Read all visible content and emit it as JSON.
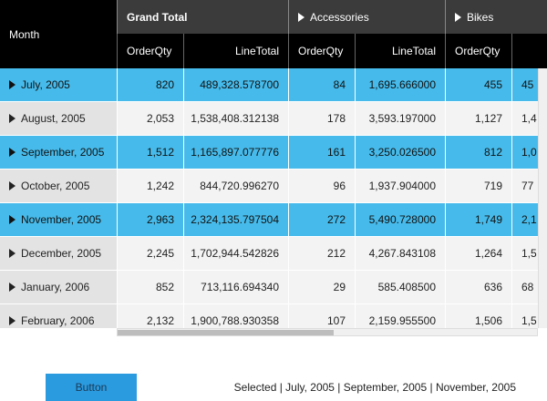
{
  "header": {
    "row_header": "Month",
    "groups": [
      "Grand Total",
      "Accessories",
      "Bikes"
    ],
    "columns": [
      "OrderQty",
      "LineTotal",
      "OrderQty",
      "LineTotal",
      "OrderQty"
    ]
  },
  "rows": [
    {
      "label": "July, 2005",
      "selected": true,
      "cells": [
        "820",
        "489,328.578700",
        "84",
        "1,695.666000",
        "455",
        "45"
      ]
    },
    {
      "label": "August, 2005",
      "selected": false,
      "cells": [
        "2,053",
        "1,538,408.312138",
        "178",
        "3,593.197000",
        "1,127",
        "1,4"
      ]
    },
    {
      "label": "September, 2005",
      "selected": true,
      "cells": [
        "1,512",
        "1,165,897.077776",
        "161",
        "3,250.026500",
        "812",
        "1,0"
      ]
    },
    {
      "label": "October, 2005",
      "selected": false,
      "cells": [
        "1,242",
        "844,720.996270",
        "96",
        "1,937.904000",
        "719",
        "77"
      ]
    },
    {
      "label": "November, 2005",
      "selected": true,
      "cells": [
        "2,963",
        "2,324,135.797504",
        "272",
        "5,490.728000",
        "1,749",
        "2,1"
      ]
    },
    {
      "label": "December, 2005",
      "selected": false,
      "cells": [
        "2,245",
        "1,702,944.542826",
        "212",
        "4,267.843108",
        "1,264",
        "1,5"
      ]
    },
    {
      "label": "January, 2006",
      "selected": false,
      "cells": [
        "852",
        "713,116.694340",
        "29",
        "585.408500",
        "636",
        "68"
      ]
    },
    {
      "label": "February, 2006",
      "selected": false,
      "cells": [
        "2,132",
        "1,900,788.930358",
        "107",
        "2,159.955500",
        "1,506",
        "1,5"
      ]
    }
  ],
  "button": "Button",
  "status": "Selected | July, 2005 | September, 2005 | November, 2005"
}
